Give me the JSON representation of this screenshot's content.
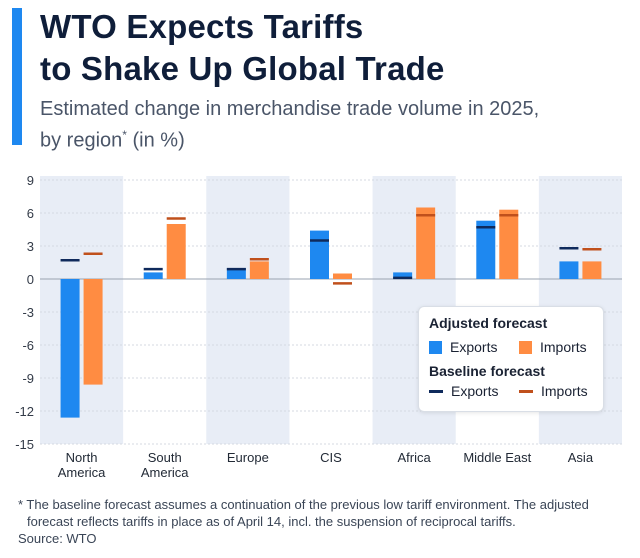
{
  "title_line1": "WTO Expects Tariffs",
  "title_line2": "to Shake Up Global Trade",
  "subtitle_line1": "Estimated change in merchandise trade volume in 2025,",
  "subtitle_line2_text": "by region",
  "subtitle_marker": "*",
  "subtitle_unit": " (in %)",
  "footnote_line1": "* The baseline forecast assumes a continuation of the previous low tariff environment. The adjusted",
  "footnote_line2": "forecast reflects tariffs in place as of April 14, incl. the suspension of reciprocal tariffs.",
  "source": "Source: WTO",
  "legend": {
    "adjusted_title": "Adjusted forecast",
    "baseline_title": "Baseline forecast",
    "exports": "Exports",
    "imports": "Imports"
  },
  "colors": {
    "exports_adjusted": "#1e88f0",
    "imports_adjusted": "#ff8c42",
    "exports_baseline": "#0f2a5c",
    "imports_baseline": "#c0501c",
    "band": "#e8edf6",
    "accent": "#1e88f0"
  },
  "chart_data": {
    "type": "bar",
    "categories": [
      [
        "North",
        "America"
      ],
      [
        "South",
        "America"
      ],
      [
        "Europe"
      ],
      [
        "CIS"
      ],
      [
        "Africa"
      ],
      [
        "Middle East"
      ],
      [
        "Asia"
      ]
    ],
    "series": [
      {
        "name": "Exports",
        "type": "adjusted",
        "values": [
          -12.6,
          0.6,
          1.0,
          4.4,
          0.6,
          5.3,
          1.6
        ]
      },
      {
        "name": "Imports",
        "type": "adjusted",
        "values": [
          -9.6,
          5.0,
          1.6,
          0.5,
          6.5,
          6.3,
          1.6
        ]
      },
      {
        "name": "Exports",
        "type": "baseline",
        "values": [
          1.7,
          0.9,
          0.9,
          3.5,
          0.1,
          4.7,
          2.8
        ]
      },
      {
        "name": "Imports",
        "type": "baseline",
        "values": [
          2.3,
          5.5,
          1.8,
          -0.4,
          5.8,
          5.8,
          2.7
        ]
      }
    ],
    "yticks": [
      9,
      6,
      3,
      0,
      -3,
      -6,
      -9,
      -12,
      -15
    ],
    "ylim": [
      -15,
      9
    ],
    "grid": true,
    "legend_position": "bottom-right"
  }
}
